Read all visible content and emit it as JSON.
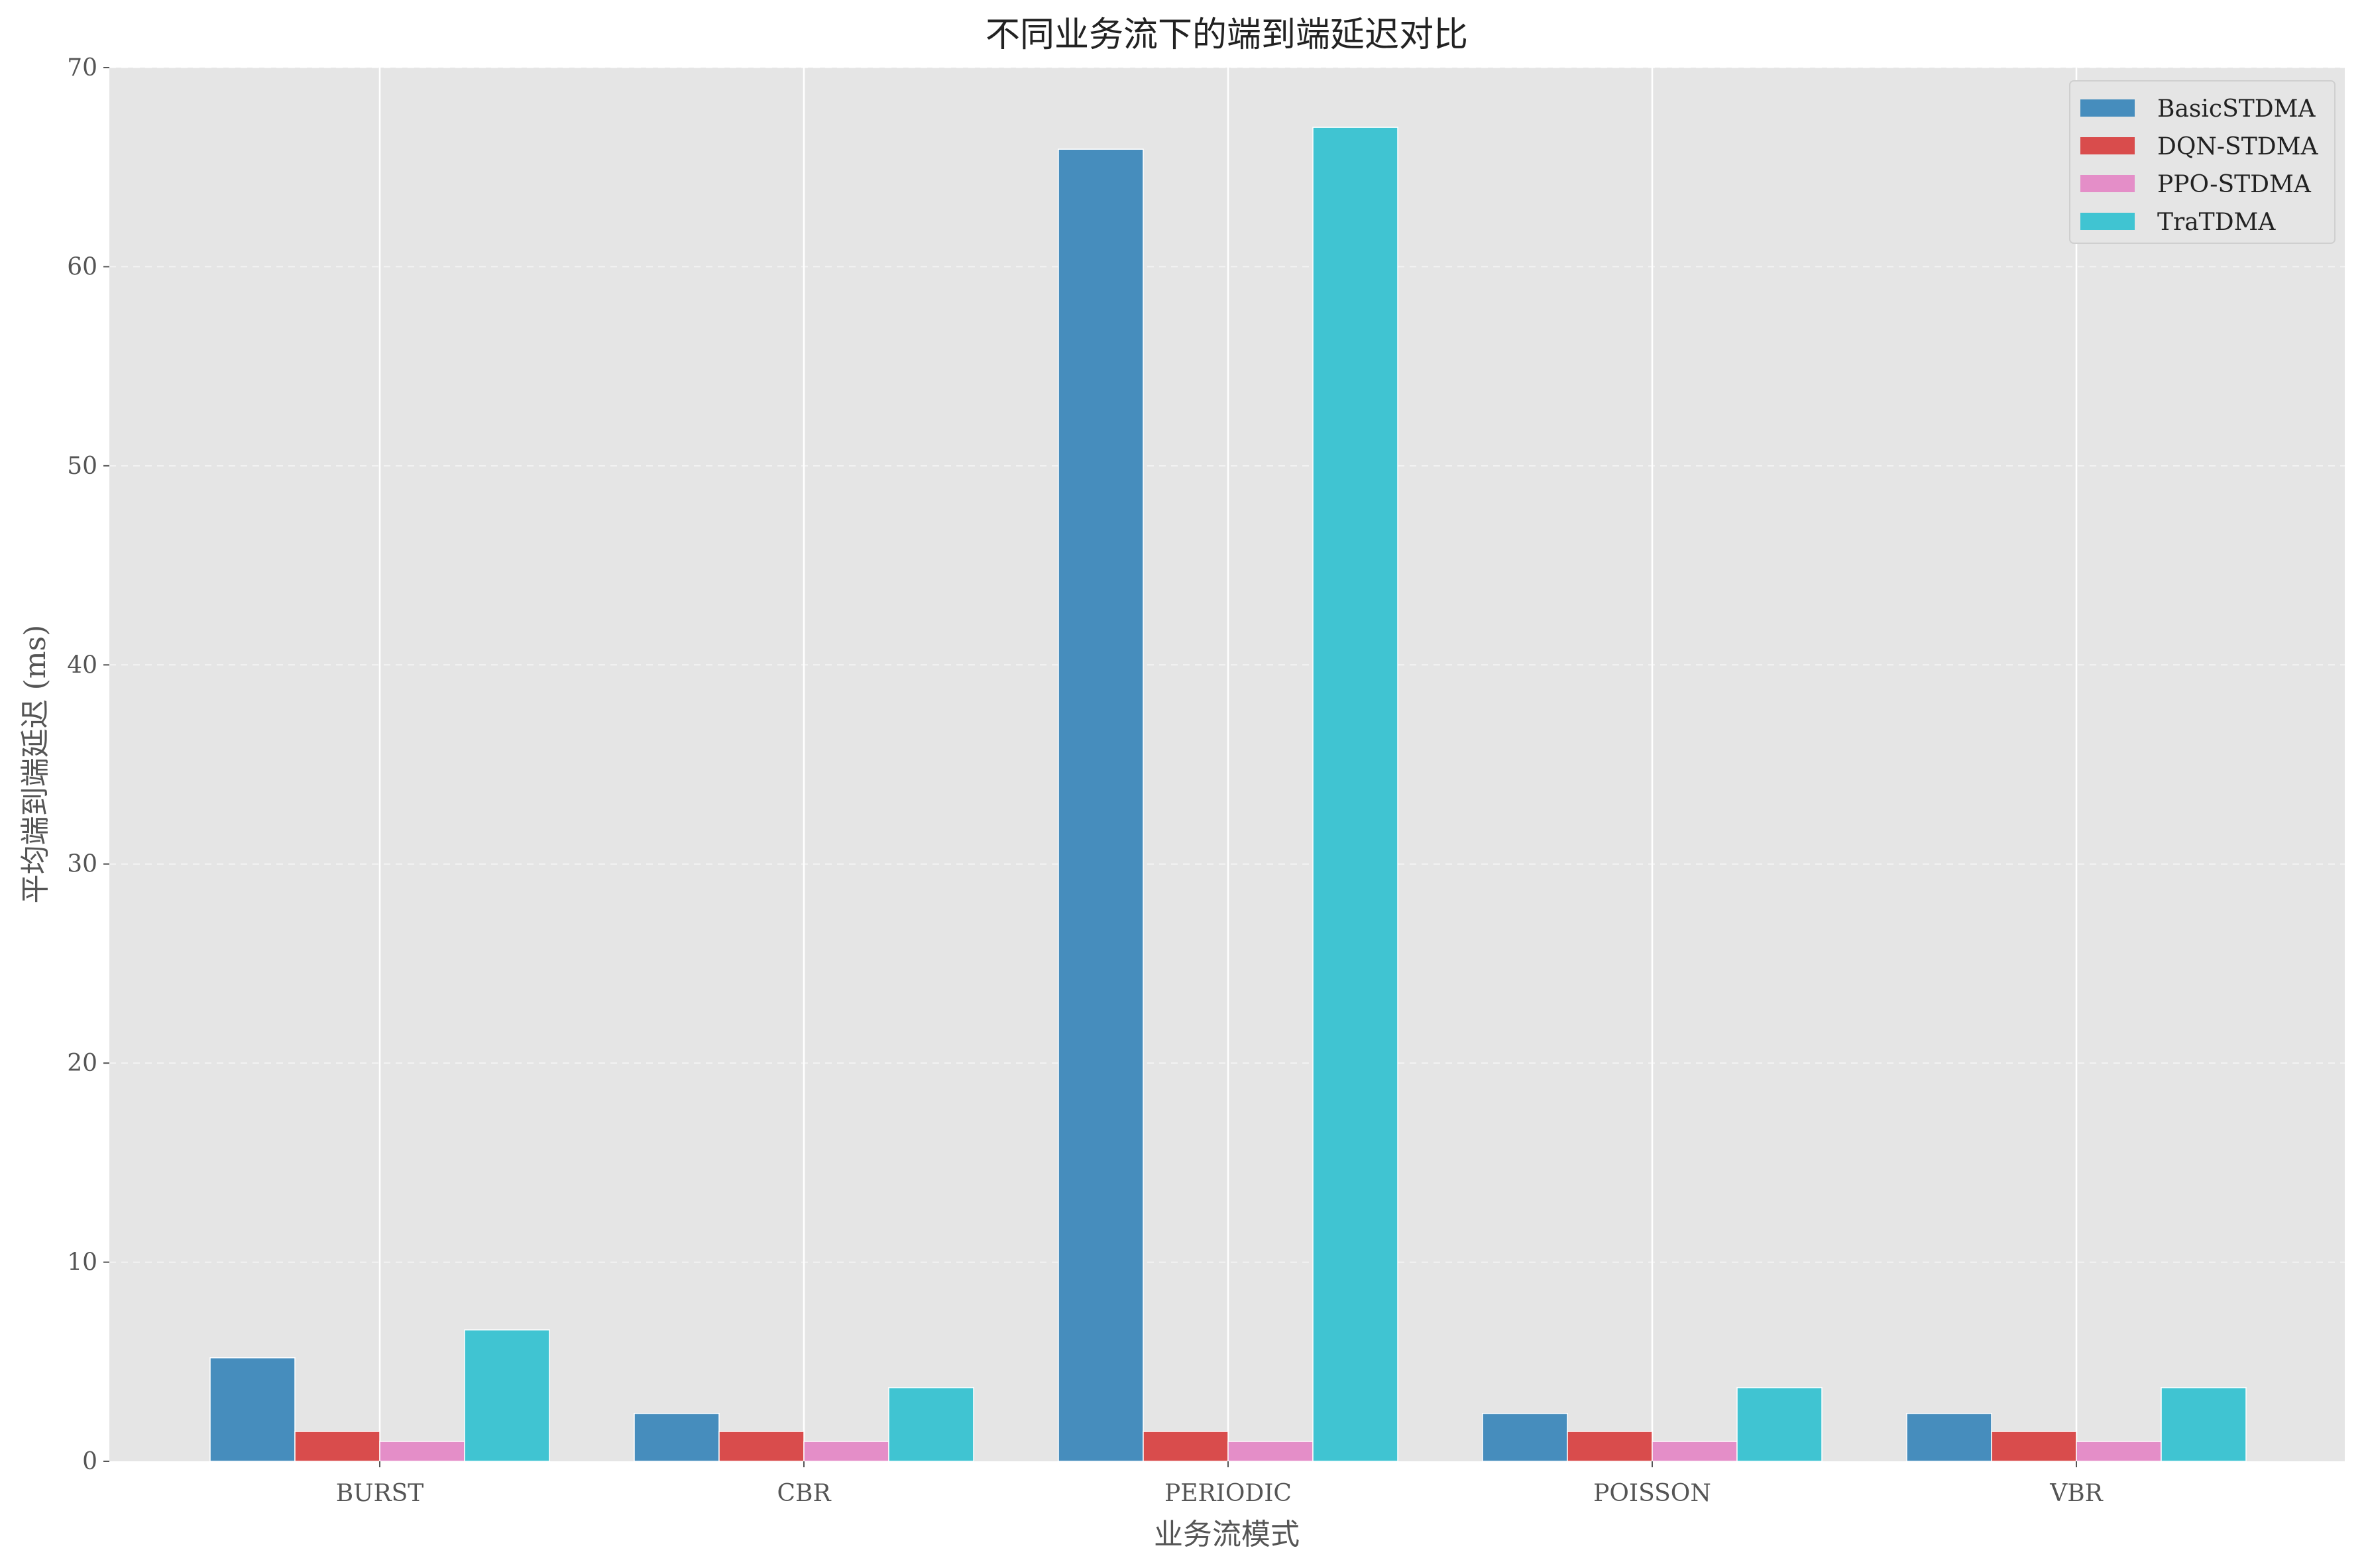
{
  "chart_data": {
    "type": "bar",
    "title": "不同业务流下的端到端延迟对比",
    "xlabel": "业务流模式",
    "ylabel": "平均端到端延迟 (ms)",
    "categories": [
      "BURST",
      "CBR",
      "PERIODIC",
      "POISSON",
      "VBR"
    ],
    "ylim": [
      0,
      70
    ],
    "yticks": [
      0,
      10,
      20,
      30,
      40,
      50,
      60,
      70
    ],
    "grid": true,
    "legend_position": "top-right",
    "series": [
      {
        "name": "BasicSTDMA",
        "color": "#468dbd",
        "values": [
          5.2,
          2.4,
          65.9,
          2.4,
          2.4
        ]
      },
      {
        "name": "DQN-STDMA",
        "color": "#d94c4c",
        "values": [
          1.5,
          1.5,
          1.5,
          1.5,
          1.5
        ]
      },
      {
        "name": "PPO-STDMA",
        "color": "#e48ec8",
        "values": [
          1.0,
          1.0,
          1.0,
          1.0,
          1.0
        ]
      },
      {
        "name": "TraTDMA",
        "color": "#40c4d2",
        "values": [
          6.6,
          3.7,
          67.0,
          3.7,
          3.7
        ]
      }
    ]
  }
}
